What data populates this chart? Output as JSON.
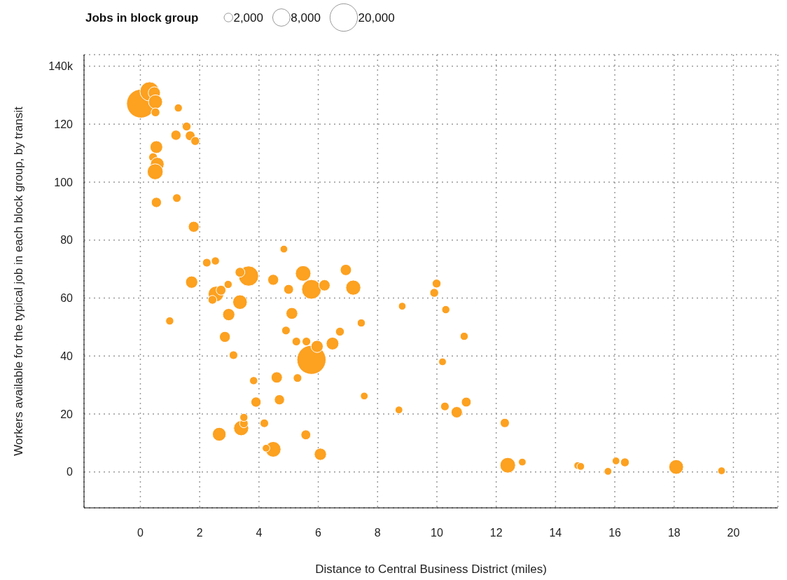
{
  "chart_data": {
    "type": "bubble",
    "xlabel": "Distance to Central Business District (miles)",
    "ylabel": "Workers available for the typical job in each block group, by transit",
    "legend_title": "Jobs in block group",
    "grid": true,
    "color": "#fca120",
    "xlim": [
      -1.9,
      21.5
    ],
    "ylim": [
      -12.4,
      144
    ],
    "xticks": [
      0,
      2,
      4,
      6,
      8,
      10,
      12,
      14,
      16,
      18,
      20
    ],
    "yticks": [
      0,
      20,
      40,
      60,
      80,
      100,
      120,
      {
        "value": 140,
        "label": "140k"
      }
    ],
    "size_legend": [
      {
        "value": 2000,
        "label": "2,000"
      },
      {
        "value": 8000,
        "label": "8,000"
      },
      {
        "value": 20000,
        "label": "20,000"
      }
    ],
    "x": [
      0.02,
      0.31,
      0.47,
      0.51,
      0.51,
      1.28,
      1.56,
      1.2,
      1.68,
      1.85,
      0.54,
      0.43,
      0.57,
      0.5,
      0.54,
      1.23,
      1.8,
      4.84,
      2.24,
      2.53,
      1.73,
      3.65,
      3.36,
      4.48,
      5.49,
      5.0,
      5.77,
      6.21,
      6.93,
      7.18,
      2.96,
      2.55,
      2.72,
      2.43,
      3.36,
      2.98,
      0.99,
      2.85,
      3.14,
      5.11,
      4.91,
      5.26,
      5.6,
      5.77,
      5.96,
      6.48,
      6.73,
      7.45,
      3.82,
      4.6,
      5.3,
      3.9,
      4.69,
      7.55,
      3.4,
      3.49,
      3.49,
      4.18,
      2.66,
      5.58,
      4.48,
      4.24,
      6.07,
      9.99,
      9.91,
      8.83,
      10.3,
      10.92,
      10.19,
      8.72,
      10.27,
      10.99,
      10.67,
      12.29,
      12.39,
      12.88,
      14.75,
      14.85,
      15.77,
      16.04,
      16.34,
      18.07,
      19.6
    ],
    "values": [
      127.1,
      131.3,
      130.8,
      127.7,
      124.1,
      125.6,
      119.2,
      116.2,
      116,
      114.2,
      112.1,
      108.6,
      106.2,
      103.6,
      93,
      94.5,
      84.6,
      76.9,
      72.2,
      72.8,
      65.5,
      67.6,
      68.9,
      66.3,
      68.5,
      63.0,
      63.0,
      64.4,
      69.7,
      63.6,
      64.7,
      61.4,
      62.7,
      59.4,
      58.6,
      54.3,
      52.1,
      46.6,
      40.3,
      54.7,
      48.8,
      45.0,
      45.0,
      38.7,
      43.3,
      44.3,
      48.4,
      51.4,
      31.5,
      32.6,
      32.4,
      24.1,
      24.9,
      26.2,
      15.1,
      16.7,
      18.8,
      16.8,
      13.0,
      12.8,
      7.8,
      8.2,
      6.1,
      65.0,
      61.8,
      57.2,
      56.0,
      46.8,
      38.0,
      21.4,
      22.6,
      24.1,
      20.6,
      16.9,
      2.3,
      3.4,
      2.2,
      1.9,
      0.2,
      3.8,
      3.3,
      1.7,
      0.4
    ],
    "sizes": [
      21700,
      9700,
      3900,
      5200,
      2000,
      1700,
      2000,
      2700,
      2500,
      2000,
      4200,
      2000,
      4900,
      6600,
      2700,
      1900,
      3100,
      1500,
      1900,
      1700,
      3900,
      10600,
      2500,
      3100,
      6300,
      2500,
      10100,
      3300,
      3300,
      5900,
      1700,
      6300,
      2500,
      2000,
      5500,
      3900,
      1700,
      3100,
      1900,
      3600,
      1900,
      1900,
      1900,
      22200,
      3900,
      4200,
      2000,
      1700,
      1700,
      3300,
      1900,
      2700,
      2700,
      1500,
      5900,
      1900,
      1700,
      1900,
      4900,
      2500,
      6300,
      1500,
      3900,
      2000,
      2000,
      1500,
      1700,
      1700,
      1500,
      1500,
      1900,
      2500,
      3300,
      2200,
      6300,
      1500,
      1500,
      1500,
      1500,
      1500,
      2000,
      5600,
      1500
    ]
  }
}
